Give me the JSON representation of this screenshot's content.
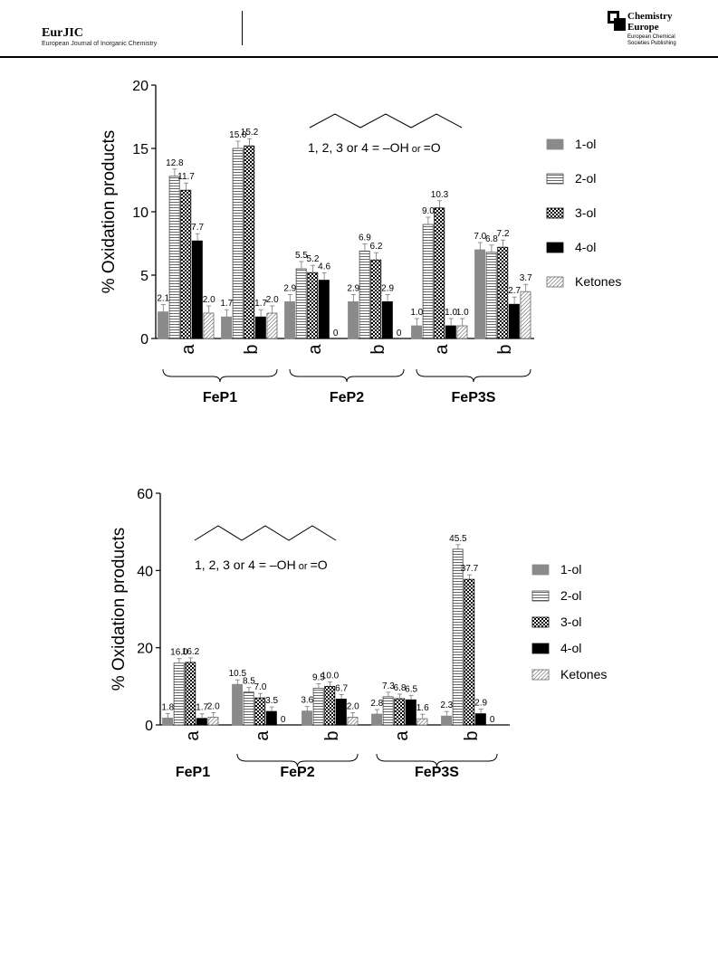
{
  "header": {
    "journal": "EurJIC",
    "journal_full": "European Journal of Inorganic Chemistry",
    "brand_line1": "Chemistry",
    "brand_line2": "Europe",
    "publisher_line1": "European Chemical",
    "publisher_line2": "Societies Publishing"
  },
  "legend_colors": {
    "1-ol": "#8a8a8a",
    "2-ol": "horizontal-stripes",
    "3-ol": "checker",
    "4-ol": "#000000",
    "Ketones": "diagonal-hatch"
  },
  "chart_data": [
    {
      "type": "bar",
      "ylabel": "% Oxidation products",
      "ylim": [
        0,
        20
      ],
      "yticks": [
        0,
        5,
        10,
        15,
        20
      ],
      "categories": [
        "a",
        "b",
        "a",
        "b",
        "a",
        "b"
      ],
      "groups": [
        {
          "label": "FeP1",
          "categories": [
            "a",
            "b"
          ]
        },
        {
          "label": "FeP2",
          "categories": [
            "a",
            "b"
          ]
        },
        {
          "label": "FeP3S",
          "categories": [
            "a",
            "b"
          ]
        }
      ],
      "series": [
        {
          "name": "1-ol",
          "values": [
            2.1,
            1.7,
            2.9,
            2.9,
            1.0,
            7.0
          ],
          "labels": [
            "2.1",
            "1.7",
            "2.9",
            "2.9",
            "1.0",
            "7.0"
          ]
        },
        {
          "name": "2-ol",
          "values": [
            12.8,
            15.0,
            5.5,
            6.9,
            9.0,
            6.8
          ],
          "labels": [
            "12.8",
            "15.0",
            "5.5",
            "6.9",
            "9.0",
            "6.8"
          ]
        },
        {
          "name": "3-ol",
          "values": [
            11.7,
            15.2,
            5.2,
            6.2,
            10.3,
            7.2
          ],
          "labels": [
            "11.7",
            "15.2",
            "5.2",
            "6.2",
            "10.3",
            "7.2"
          ]
        },
        {
          "name": "4-ol",
          "values": [
            7.7,
            1.7,
            4.6,
            2.9,
            1.0,
            2.7
          ],
          "labels": [
            "7.7",
            "1.7",
            "4.6",
            "2.9",
            "1.0",
            "2.7"
          ]
        },
        {
          "name": "Ketones",
          "values": [
            2.0,
            2.0,
            0,
            0,
            1.0,
            3.7
          ],
          "labels": [
            "2.0",
            "2.0",
            "0",
            "0",
            "1.0",
            "3.7"
          ]
        }
      ],
      "annotation": {
        "left": "1, 2, 3 or 4 =",
        "oh": "OH",
        "or": "or",
        "oxo": "O"
      },
      "legend_position": "right"
    },
    {
      "type": "bar",
      "ylabel": "% Oxidation products",
      "ylim": [
        0,
        60
      ],
      "yticks": [
        0,
        20,
        40,
        60
      ],
      "categories": [
        "a",
        "a",
        "b",
        "a",
        "b"
      ],
      "groups": [
        {
          "label": "FeP1",
          "categories": [
            "a"
          ]
        },
        {
          "label": "FeP2",
          "categories": [
            "a",
            "b"
          ]
        },
        {
          "label": "FeP3S",
          "categories": [
            "a",
            "b"
          ]
        }
      ],
      "series": [
        {
          "name": "1-ol",
          "values": [
            1.8,
            10.5,
            3.6,
            2.8,
            2.3
          ],
          "labels": [
            "1.8",
            "10.5",
            "3.6",
            "2.8",
            "2.3"
          ]
        },
        {
          "name": "2-ol",
          "values": [
            16.0,
            8.5,
            9.5,
            7.3,
            45.5
          ],
          "labels": [
            "16.0",
            "8.5",
            "9.5",
            "7.3",
            "45.5"
          ]
        },
        {
          "name": "3-ol",
          "values": [
            16.2,
            7.0,
            10.0,
            6.8,
            37.7
          ],
          "labels": [
            "16.2",
            "7.0",
            "10.0",
            "6.8",
            "37.7"
          ]
        },
        {
          "name": "4-ol",
          "values": [
            1.7,
            3.5,
            6.7,
            6.5,
            2.9
          ],
          "labels": [
            "1.7",
            "3.5",
            "6.7",
            "6.5",
            "2.9"
          ]
        },
        {
          "name": "Ketones",
          "values": [
            2.0,
            0,
            2.0,
            1.6,
            0
          ],
          "labels": [
            "2.0",
            "0",
            "2.0",
            "1.6",
            "0"
          ]
        }
      ],
      "annotation": {
        "left": "1, 2, 3 or 4 =",
        "oh": "OH",
        "or": "or",
        "oxo": "O"
      },
      "legend_position": "right"
    }
  ]
}
